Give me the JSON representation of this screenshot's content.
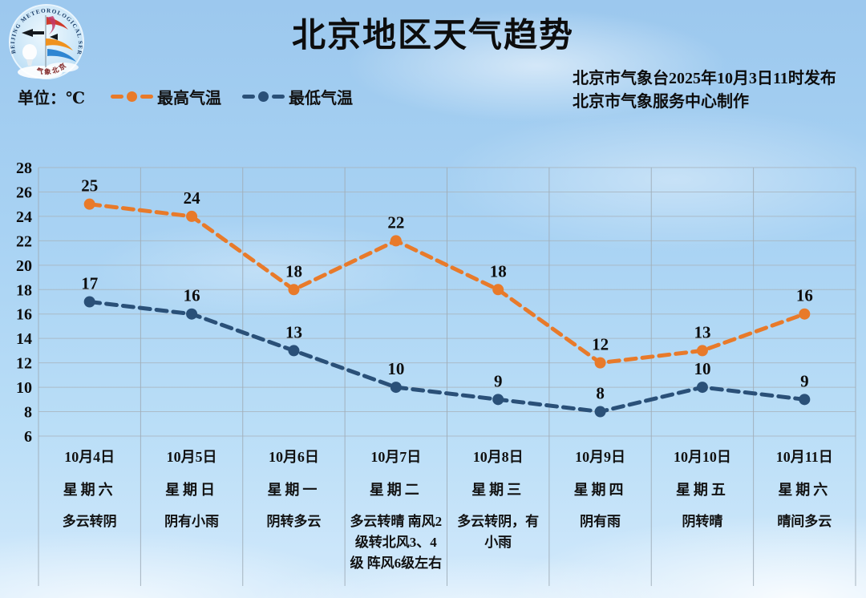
{
  "header": {
    "title": "北京地区天气趋势",
    "unit_label": "单位：℃",
    "publisher_line1": "北京市气象台2025年10月3日11时发布",
    "publisher_line2": "北京市气象服务中心制作"
  },
  "logo": {
    "ring_text_top": "BEIJING METEOROLOGICAL SERVICE",
    "ring_text_bottom": "气象北京"
  },
  "chart_data": {
    "type": "line",
    "title": "北京地区天气趋势",
    "unit": "℃",
    "ylim": [
      6,
      28
    ],
    "ytick_step": 2,
    "grid": true,
    "line_style": "dashed-with-markers",
    "legend_position": "top-left",
    "categories": [
      {
        "date": "10月4日",
        "weekday": "星期六",
        "weather": "多云转阴"
      },
      {
        "date": "10月5日",
        "weekday": "星期日",
        "weather": "阴有小雨"
      },
      {
        "date": "10月6日",
        "weekday": "星期一",
        "weather": "阴转多云"
      },
      {
        "date": "10月7日",
        "weekday": "星期二",
        "weather": "多云转晴 南风2级转北风3、4级 阵风6级左右"
      },
      {
        "date": "10月8日",
        "weekday": "星期三",
        "weather": "多云转阴，有小雨"
      },
      {
        "date": "10月9日",
        "weekday": "星期四",
        "weather": "阴有雨"
      },
      {
        "date": "10月10日",
        "weekday": "星期五",
        "weather": "阴转晴"
      },
      {
        "date": "10月11日",
        "weekday": "星期六",
        "weather": "晴间多云"
      }
    ],
    "series": [
      {
        "name": "最高气温",
        "color": "#e87a2a",
        "values": [
          25,
          24,
          18,
          22,
          18,
          12,
          13,
          16
        ]
      },
      {
        "name": "最低气温",
        "color": "#2a5078",
        "values": [
          17,
          16,
          13,
          10,
          9,
          8,
          10,
          9
        ]
      }
    ]
  }
}
